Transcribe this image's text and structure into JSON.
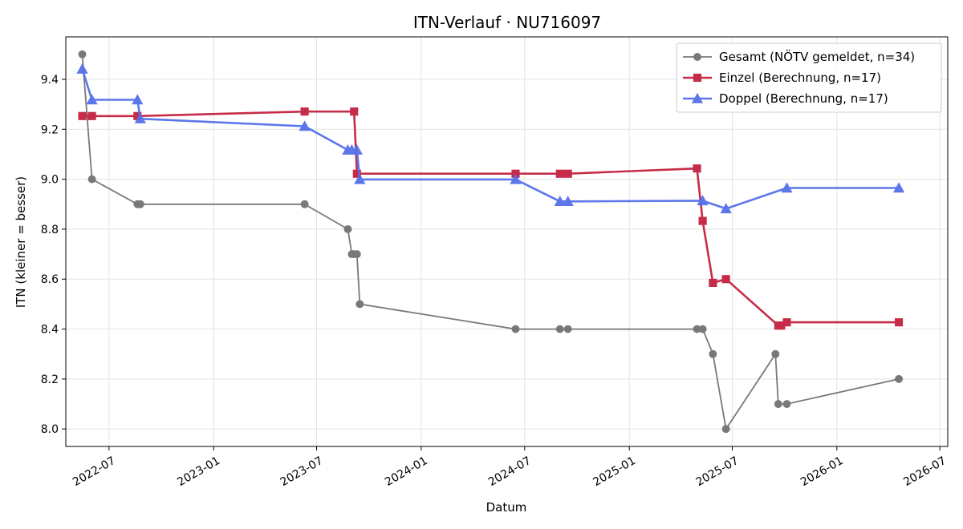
{
  "chart_data": {
    "type": "line",
    "title": "ITN-Verlauf · NU716097",
    "xlabel": "Datum",
    "ylabel": "ITN  (kleiner = besser)",
    "grid": true,
    "legend_position": "top-right",
    "xlim": [
      "2022-04-16",
      "2026-07-15"
    ],
    "ylim": [
      7.93,
      9.57
    ],
    "x_ticks": [
      "2022-07-01",
      "2023-01-01",
      "2023-07-01",
      "2024-01-01",
      "2024-07-01",
      "2025-01-01",
      "2025-07-01",
      "2026-01-01",
      "2026-07-01"
    ],
    "x_tick_labels": [
      "2022-07",
      "2023-01",
      "2023-07",
      "2024-01",
      "2024-07",
      "2025-01",
      "2025-07",
      "2026-01",
      "2026-07"
    ],
    "y_ticks": [
      8.0,
      8.2,
      8.4,
      8.6,
      8.8,
      9.0,
      9.2,
      9.4
    ],
    "y_tick_labels": [
      "8.0",
      "8.2",
      "8.4",
      "8.6",
      "8.8",
      "9.0",
      "9.2",
      "9.4"
    ],
    "series": [
      {
        "name": "Gesamt (NÖTV gemeldet, n=34)",
        "color": "#4d4d4d",
        "marker": "circle",
        "points": [
          [
            "2022-05-15",
            9.5
          ],
          [
            "2022-06-01",
            9.0
          ],
          [
            "2022-08-20",
            8.9
          ],
          [
            "2022-08-25",
            8.9
          ],
          [
            "2023-06-10",
            8.9
          ],
          [
            "2023-08-25",
            8.8
          ],
          [
            "2023-09-01",
            8.7
          ],
          [
            "2023-09-05",
            8.7
          ],
          [
            "2023-09-10",
            8.7
          ],
          [
            "2023-09-15",
            8.5
          ],
          [
            "2024-06-15",
            8.4
          ],
          [
            "2024-09-01",
            8.4
          ],
          [
            "2024-09-15",
            8.4
          ],
          [
            "2025-04-30",
            8.4
          ],
          [
            "2025-05-10",
            8.4
          ],
          [
            "2025-05-28",
            8.3
          ],
          [
            "2025-06-20",
            8.0
          ],
          [
            "2025-09-15",
            8.3
          ],
          [
            "2025-09-20",
            8.1
          ],
          [
            "2025-10-05",
            8.1
          ],
          [
            "2026-04-20",
            8.2
          ]
        ]
      },
      {
        "name": "Einzel (Berechnung, n=17)",
        "color": "#c4213f",
        "marker": "square",
        "points": [
          [
            "2022-05-15",
            9.253
          ],
          [
            "2022-06-01",
            9.253
          ],
          [
            "2022-08-20",
            9.253
          ],
          [
            "2023-06-10",
            9.271
          ],
          [
            "2023-09-05",
            9.271
          ],
          [
            "2023-09-10",
            9.022
          ],
          [
            "2024-06-15",
            9.022
          ],
          [
            "2024-09-01",
            9.022
          ],
          [
            "2024-09-15",
            9.022
          ],
          [
            "2025-04-30",
            9.043
          ],
          [
            "2025-05-10",
            8.833
          ],
          [
            "2025-05-28",
            8.585
          ],
          [
            "2025-06-20",
            8.6
          ],
          [
            "2025-09-20",
            8.414
          ],
          [
            "2025-09-25",
            8.414
          ],
          [
            "2025-10-05",
            8.427
          ],
          [
            "2026-04-20",
            8.427
          ]
        ]
      },
      {
        "name": "Doppel (Berechnung, n=17)",
        "color": "#5470e8",
        "marker": "triangle",
        "points": [
          [
            "2022-05-15",
            9.441
          ],
          [
            "2022-06-01",
            9.318
          ],
          [
            "2022-08-20",
            9.318
          ],
          [
            "2022-08-25",
            9.242
          ],
          [
            "2023-06-10",
            9.212
          ],
          [
            "2023-08-25",
            9.117
          ],
          [
            "2023-09-01",
            9.117
          ],
          [
            "2023-09-10",
            9.117
          ],
          [
            "2023-09-15",
            8.999
          ],
          [
            "2024-06-15",
            8.999
          ],
          [
            "2024-09-01",
            8.911
          ],
          [
            "2024-09-15",
            8.911
          ],
          [
            "2025-05-10",
            8.914
          ],
          [
            "2025-06-20",
            8.882
          ],
          [
            "2025-10-05",
            8.965
          ],
          [
            "2026-04-20",
            8.965
          ]
        ]
      }
    ]
  }
}
